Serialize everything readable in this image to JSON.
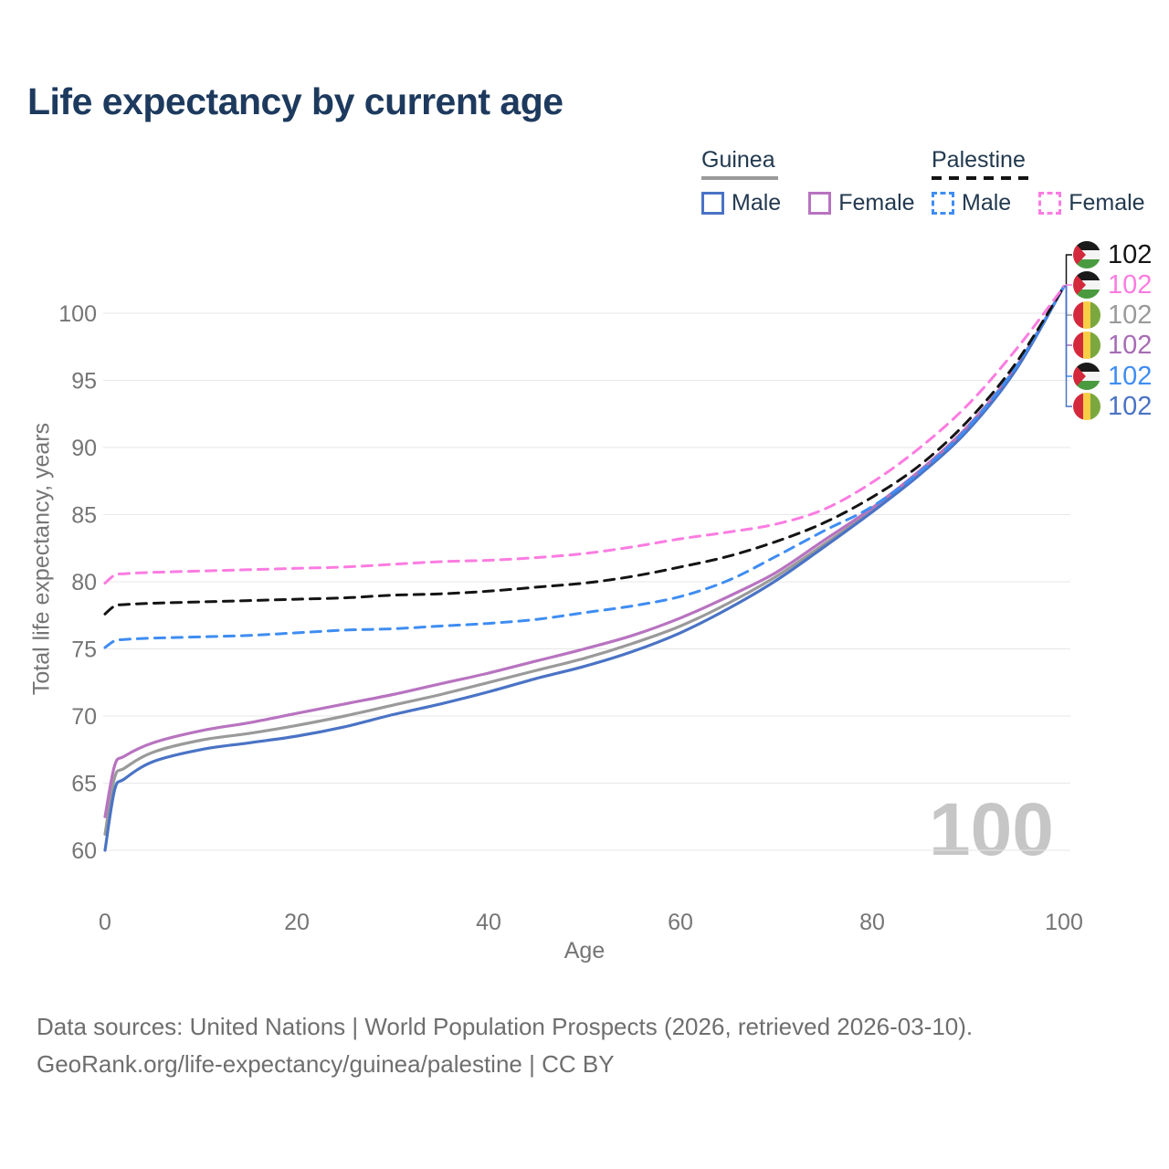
{
  "title": "Life expectancy by current age",
  "legend": {
    "groups": [
      {
        "name": "Guinea",
        "line_style": "solid",
        "underline_color": "#9a9a9a",
        "items": [
          {
            "label": "Male",
            "color": "#4a73c5"
          },
          {
            "label": "Female",
            "color": "#b873c0"
          }
        ]
      },
      {
        "name": "Palestine",
        "line_style": "dashed",
        "underline_color": "#141414",
        "items": [
          {
            "label": "Male",
            "color": "#3f8df2"
          },
          {
            "label": "Female",
            "color": "#fb7ce1"
          }
        ]
      }
    ]
  },
  "chart_data": {
    "type": "line",
    "title": "Life expectancy by current age",
    "xlabel": "Age",
    "ylabel": "Total life expectancy, years",
    "xlim": [
      0,
      100
    ],
    "ylim": [
      58.5,
      103.5
    ],
    "xticks": [
      0,
      20,
      40,
      60,
      80,
      100
    ],
    "yticks": [
      60,
      65,
      70,
      75,
      80,
      85,
      90,
      95,
      100
    ],
    "grid": "horizontal",
    "legend_position": "top-right",
    "x": [
      0,
      1,
      2,
      5,
      10,
      15,
      20,
      25,
      30,
      35,
      40,
      45,
      50,
      55,
      60,
      65,
      70,
      75,
      80,
      85,
      90,
      95,
      100
    ],
    "series": [
      {
        "name": "Guinea Both sexes",
        "country": "Guinea",
        "sex": "Both",
        "color": "#9a9a9a",
        "dash": false,
        "values": [
          61.2,
          65.4,
          66.1,
          67.3,
          68.2,
          68.7,
          69.3,
          70.0,
          70.8,
          71.6,
          72.5,
          73.4,
          74.3,
          75.4,
          76.7,
          78.4,
          80.4,
          82.8,
          85.3,
          88.1,
          91.4,
          95.9,
          102.0
        ]
      },
      {
        "name": "Guinea Female",
        "country": "Guinea",
        "sex": "Female",
        "color": "#b873c0",
        "dash": false,
        "values": [
          62.5,
          66.3,
          67.0,
          68.0,
          68.9,
          69.5,
          70.2,
          70.9,
          71.6,
          72.4,
          73.2,
          74.1,
          75.0,
          76.0,
          77.3,
          78.9,
          80.7,
          83.1,
          85.5,
          88.3,
          91.6,
          96.0,
          102.0
        ]
      },
      {
        "name": "Guinea Male",
        "country": "Guinea",
        "sex": "Male",
        "color": "#4a73c5",
        "dash": false,
        "values": [
          60.0,
          64.5,
          65.3,
          66.6,
          67.5,
          68.0,
          68.5,
          69.2,
          70.1,
          70.9,
          71.8,
          72.8,
          73.7,
          74.8,
          76.2,
          78.0,
          80.1,
          82.6,
          85.2,
          88.0,
          91.3,
          95.8,
          102.0
        ]
      },
      {
        "name": "Palestine Male",
        "country": "Palestine",
        "sex": "Male",
        "color": "#3f8df2",
        "dash": true,
        "values": [
          75.1,
          75.6,
          75.7,
          75.8,
          75.9,
          76.0,
          76.2,
          76.4,
          76.5,
          76.7,
          76.9,
          77.2,
          77.7,
          78.2,
          78.9,
          80.1,
          81.9,
          83.8,
          85.6,
          88.2,
          91.5,
          96.0,
          102.0
        ]
      },
      {
        "name": "Palestine Both sexes",
        "country": "Palestine",
        "sex": "Both",
        "color": "#141414",
        "dash": true,
        "values": [
          77.6,
          78.2,
          78.3,
          78.4,
          78.5,
          78.6,
          78.7,
          78.8,
          79.0,
          79.1,
          79.3,
          79.6,
          79.9,
          80.4,
          81.1,
          81.9,
          83.0,
          84.4,
          86.3,
          88.7,
          92.0,
          96.3,
          102.0
        ]
      },
      {
        "name": "Palestine Female",
        "country": "Palestine",
        "sex": "Female",
        "color": "#fb7ce1",
        "dash": true,
        "values": [
          79.9,
          80.5,
          80.6,
          80.7,
          80.8,
          80.9,
          81.0,
          81.1,
          81.3,
          81.5,
          81.6,
          81.8,
          82.1,
          82.6,
          83.2,
          83.7,
          84.3,
          85.4,
          87.4,
          90.0,
          93.2,
          97.3,
          102.0
        ]
      }
    ]
  },
  "end_labels": [
    {
      "flag": "palestine",
      "series": "Palestine Both sexes",
      "value": "102",
      "color": "#141414"
    },
    {
      "flag": "palestine",
      "series": "Palestine Female",
      "value": "102",
      "color": "#fb7ce1"
    },
    {
      "flag": "guinea",
      "series": "Guinea Both sexes",
      "value": "102",
      "color": "#9a9a9a"
    },
    {
      "flag": "guinea",
      "series": "Guinea Female",
      "value": "102",
      "color": "#a76cb5"
    },
    {
      "flag": "palestine",
      "series": "Palestine Male",
      "value": "102",
      "color": "#3f8df2"
    },
    {
      "flag": "guinea",
      "series": "Guinea Male",
      "value": "102",
      "color": "#4a73c5"
    }
  ],
  "age_counter": "100",
  "footer": {
    "line1": "Data sources: United Nations | World Population Prospects (2026, retrieved 2026-03-10).",
    "line2": "GeoRank.org/life-expectancy/guinea/palestine | CC BY"
  }
}
